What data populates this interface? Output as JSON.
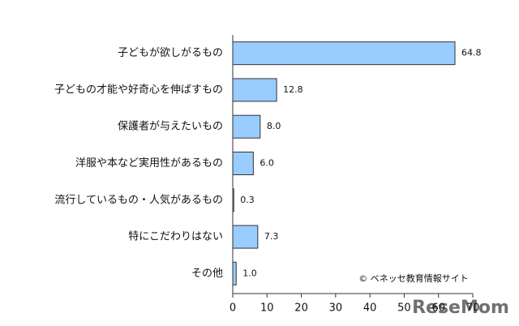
{
  "chart_data": {
    "type": "bar",
    "orientation": "horizontal",
    "categories": [
      "子どもが欲しがるもの",
      "子どもの才能や好奇心を伸ばすもの",
      "保護者が与えたいもの",
      "洋服や本など実用性があるもの",
      "流行しているもの・人気があるもの",
      "特にこだわりはない",
      "その他"
    ],
    "values": [
      64.8,
      12.8,
      8.0,
      6.0,
      0.3,
      7.3,
      1.0
    ],
    "value_labels": [
      "64.8",
      "12.8",
      "8.0",
      "6.0",
      "0.3",
      "7.3",
      "1.0"
    ],
    "color": "#99ccff",
    "xlim": [
      0,
      70
    ],
    "xticks": [
      0,
      10,
      20,
      30,
      40,
      50,
      60,
      70
    ],
    "copyright": "© ベネッセ教育情報サイト",
    "watermark": "ReseMom"
  }
}
